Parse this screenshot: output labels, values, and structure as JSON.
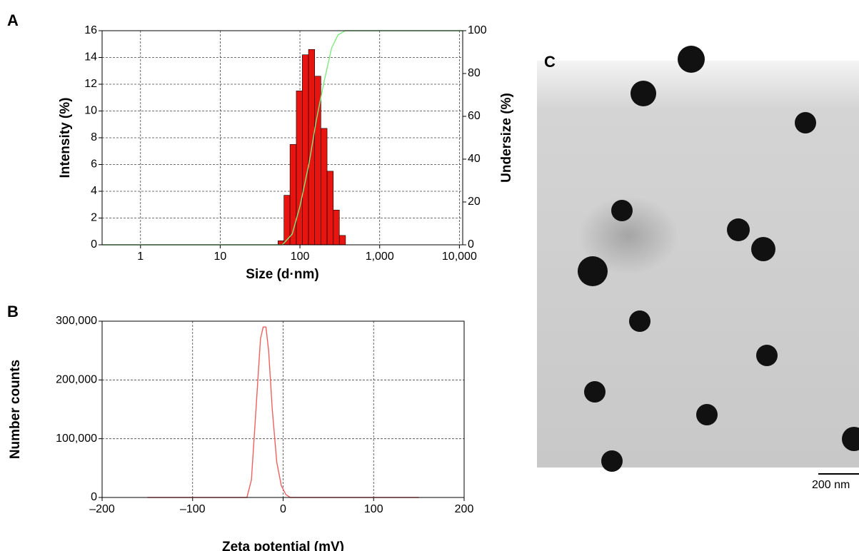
{
  "chart_data": [
    {
      "type": "histogram",
      "panel_label": "A",
      "xlabel": "Size (d·nm)",
      "ylabel": "Intensity (%)",
      "y2label": "Undersize (%)",
      "xscale": "log",
      "xlim": [
        0.33,
        11000
      ],
      "xticks": [
        1,
        10,
        100,
        {
          "value": 1000,
          "label": "1,000"
        },
        {
          "value": 10000,
          "label": "10,000"
        }
      ],
      "ylim": [
        0,
        16
      ],
      "yticks": [
        0,
        2,
        4,
        6,
        8,
        10,
        12,
        14,
        16
      ],
      "y2lim": [
        0,
        100
      ],
      "y2ticks": [
        0,
        20,
        40,
        60,
        80,
        100
      ],
      "grid": true,
      "color": "#e8140f",
      "bins": [
        53,
        63,
        75,
        90,
        107,
        128,
        153,
        183,
        219,
        262,
        312,
        373
      ],
      "counts": [
        0.3,
        3.7,
        7.5,
        11.5,
        14.2,
        14.6,
        12.6,
        8.7,
        5.5,
        2.6,
        0.7
      ],
      "line": {
        "axis": "y2",
        "color": "#7ee87e",
        "x": [
          0.33,
          55,
          60,
          80,
          100,
          130,
          160,
          200,
          250,
          300,
          370,
          11000
        ],
        "values": [
          0,
          0,
          0,
          5,
          18,
          38,
          58,
          76,
          92,
          98,
          100,
          100
        ]
      }
    },
    {
      "type": "line",
      "panel_label": "B",
      "xlabel": "Zeta potential (mV)",
      "ylabel": "Number counts",
      "xlim": [
        -200,
        200
      ],
      "xticks": [
        {
          "value": -200,
          "label": "–200"
        },
        {
          "value": -100,
          "label": "–100"
        },
        0,
        100,
        200
      ],
      "ylim": [
        0,
        300000
      ],
      "yticks": [
        0,
        {
          "value": 100000,
          "label": "100,000"
        },
        {
          "value": 200000,
          "label": "200,000"
        },
        {
          "value": 300000,
          "label": "300,000"
        }
      ],
      "grid": true,
      "series": [
        {
          "color": "#f06060",
          "x": [
            -150,
            -40,
            -35,
            -30,
            -25,
            -22,
            -19,
            -16,
            -12,
            -7,
            -2,
            3,
            8,
            150
          ],
          "values": [
            0,
            0,
            30000,
            150000,
            270000,
            290000,
            290000,
            250000,
            150000,
            60000,
            20000,
            5000,
            0,
            0
          ]
        }
      ]
    }
  ],
  "image": {
    "panel_label": "C",
    "scale_bar": "200 nm"
  }
}
